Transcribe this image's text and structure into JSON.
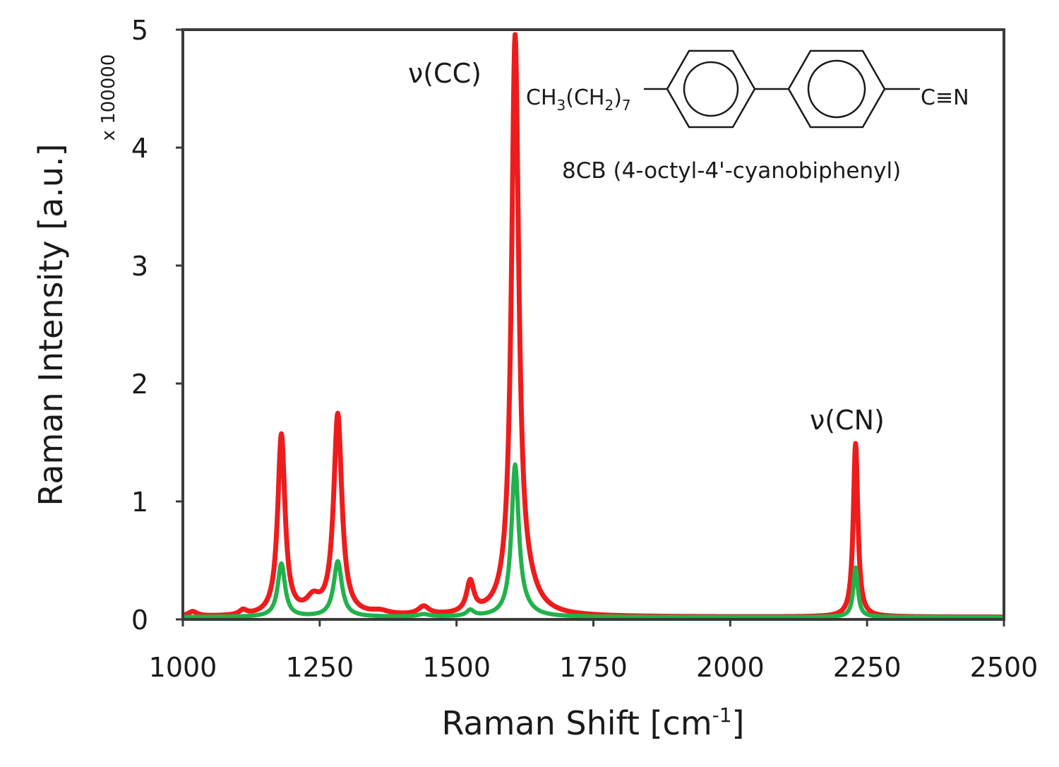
{
  "chart_data": {
    "type": "line",
    "xlabel": "Raman Shift [cm",
    "xlabel_sup": "-1",
    "xlabel_end": "]",
    "ylabel": "Raman Intensity [a.u.]",
    "y_multiplier": "x 100000",
    "xlim": [
      1000,
      2500
    ],
    "ylim": [
      0,
      5
    ],
    "x_ticks": [
      "1000",
      "1250",
      "1500",
      "1750",
      "2000",
      "2250",
      "2500"
    ],
    "y_ticks": [
      "0",
      "1",
      "2",
      "3",
      "4",
      "5"
    ],
    "grid": false,
    "annotations": [
      {
        "text": "ν(CC)",
        "x": 1490,
        "y": 4.6
      },
      {
        "text": "ν(CN)",
        "x": 2175,
        "y": 1.7
      }
    ],
    "molecule": {
      "left_group": "CH",
      "left_sub1": "3",
      "left_mid": "(CH",
      "left_sub2": "2",
      "left_end": ")",
      "left_sub3": "7",
      "right_group": "C≡N",
      "caption": "8CB (4-octyl-4'-cyanobiphenyl)"
    },
    "baseline": 0.02,
    "series": [
      {
        "color": "#ee1c1c",
        "peaks": [
          {
            "x": 1018,
            "h": 0.04,
            "w": 10
          },
          {
            "x": 1110,
            "h": 0.04,
            "w": 8
          },
          {
            "x": 1180,
            "h": 1.53,
            "w": 8
          },
          {
            "x": 1238,
            "h": 0.12,
            "w": 15
          },
          {
            "x": 1283,
            "h": 1.7,
            "w": 9
          },
          {
            "x": 1360,
            "h": 0.03,
            "w": 20
          },
          {
            "x": 1440,
            "h": 0.07,
            "w": 12
          },
          {
            "x": 1525,
            "h": 0.26,
            "w": 8
          },
          {
            "x": 1607,
            "h": 4.84,
            "w": 8
          },
          {
            "x": 1628,
            "h": 0.16,
            "w": 25
          },
          {
            "x": 2229,
            "h": 1.47,
            "w": 5
          }
        ]
      },
      {
        "color": "#22b14c",
        "peaks": [
          {
            "x": 1180,
            "h": 0.45,
            "w": 8
          },
          {
            "x": 1283,
            "h": 0.47,
            "w": 9
          },
          {
            "x": 1440,
            "h": 0.02,
            "w": 12
          },
          {
            "x": 1525,
            "h": 0.05,
            "w": 8
          },
          {
            "x": 1607,
            "h": 1.27,
            "w": 8
          },
          {
            "x": 1625,
            "h": 0.04,
            "w": 20
          },
          {
            "x": 2229,
            "h": 0.42,
            "w": 5
          }
        ]
      }
    ]
  }
}
